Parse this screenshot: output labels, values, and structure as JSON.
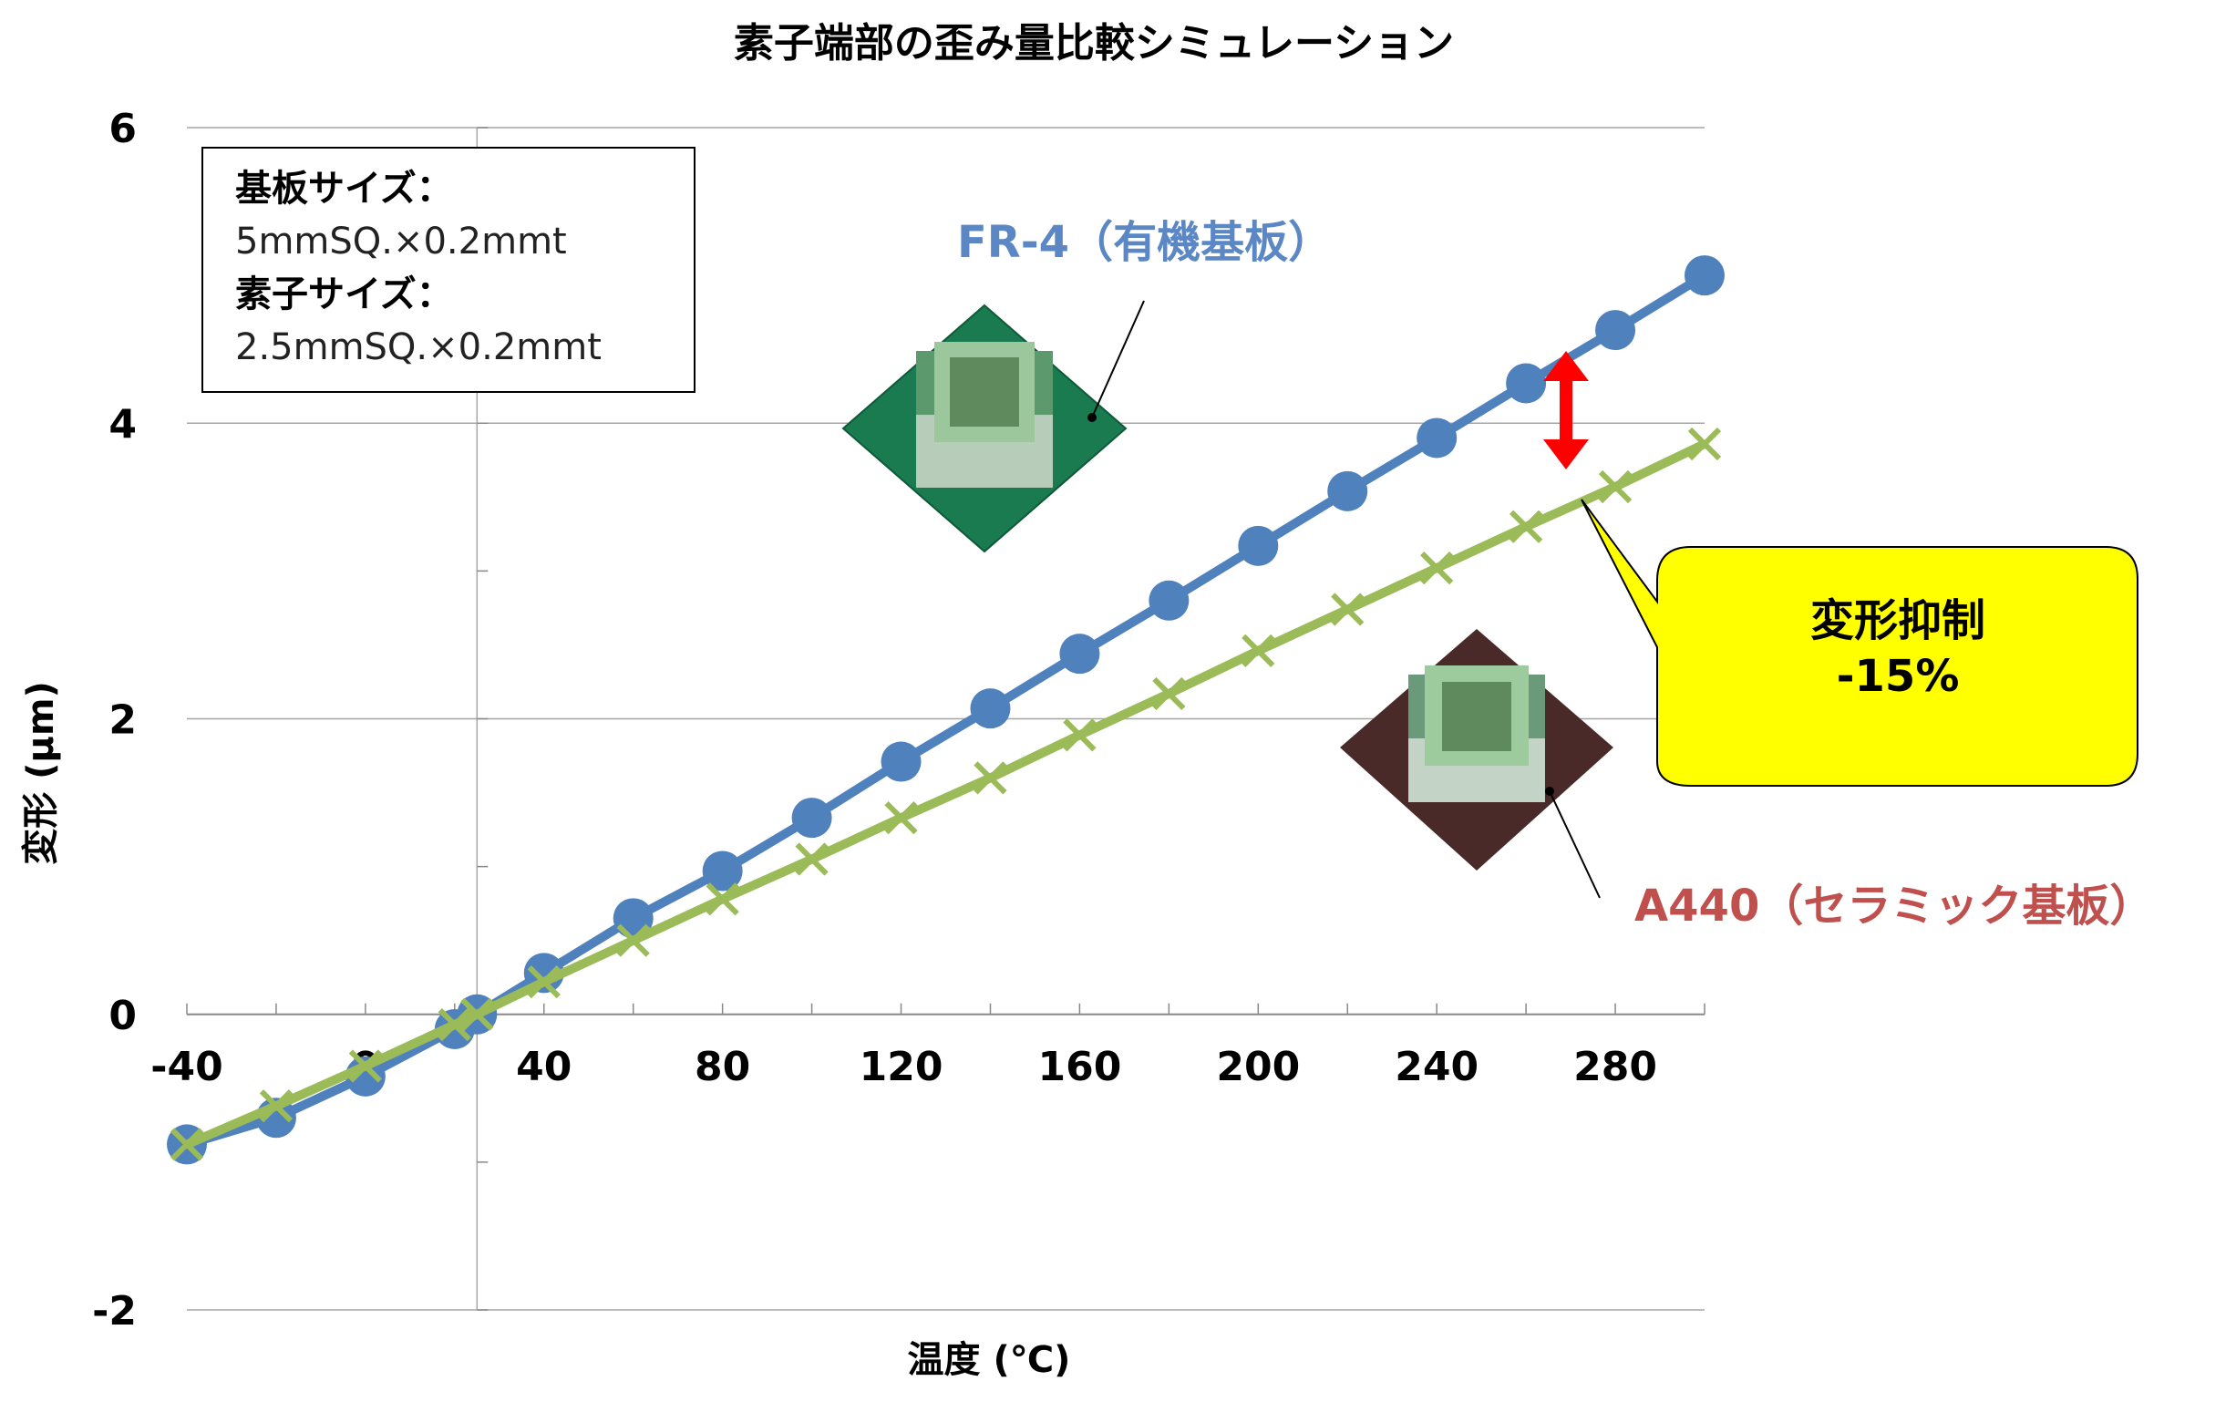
{
  "chart_data": {
    "type": "line",
    "title": "素子端部の歪み量比較シミュレーション",
    "xlabel": "温度 (℃)",
    "ylabel": "変形 (μm)",
    "xlim": [
      -40,
      300
    ],
    "ylim": [
      -2,
      6
    ],
    "xticks": [
      "-40",
      "0",
      "40",
      "80",
      "120",
      "160",
      "200",
      "240",
      "280"
    ],
    "yticks": [
      "6",
      "4",
      "2",
      "0",
      "-2"
    ],
    "x": [
      -40,
      -20,
      0,
      20,
      25,
      40,
      60,
      80,
      100,
      120,
      140,
      160,
      180,
      200,
      220,
      240,
      260,
      280,
      300
    ],
    "series": [
      {
        "name": "FR-4（有機基板）",
        "color": "#4f81bd",
        "marker": "circle",
        "values": [
          -0.88,
          -0.7,
          -0.42,
          -0.1,
          0.0,
          0.28,
          0.65,
          0.97,
          1.33,
          1.71,
          2.07,
          2.44,
          2.8,
          3.17,
          3.54,
          3.9,
          4.27,
          4.63,
          5.0
        ]
      },
      {
        "name": "A440（セラミック基板）",
        "color": "#9bbb59",
        "marker": "x",
        "values": [
          -0.88,
          -0.62,
          -0.35,
          -0.07,
          0.0,
          0.22,
          0.5,
          0.78,
          1.05,
          1.33,
          1.6,
          1.89,
          2.17,
          2.46,
          2.74,
          3.02,
          3.3,
          3.57,
          3.86
        ]
      }
    ],
    "grid": "horizontal",
    "legend": "none",
    "annotations": {
      "info_box": {
        "board_label": "基板サイズ：",
        "board_value": "5mmSQ.×0.2mmt",
        "element_label": "素子サイズ：",
        "element_value": "2.5mmSQ.×0.2mmt"
      },
      "fr4_label": "FR-4（有機基板）",
      "a440_label": "A440（セラミック基板）",
      "callout_line1": "変形抑制",
      "callout_line2": "-15%"
    }
  },
  "colors": {
    "fr4_board": "#1a7a50",
    "a440_board": "#4a2a28",
    "arrow": "#ff0000",
    "callout_fill": "#ffff00"
  }
}
